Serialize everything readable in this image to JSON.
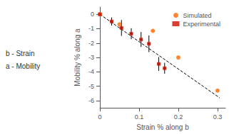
{
  "chart_data": {
    "type": "scatter",
    "xlabel": "Strain % along b",
    "ylabel": "Mobility % along a",
    "xlim": [
      0,
      0.32
    ],
    "ylim": [
      -6.5,
      0.5
    ],
    "xticks": [
      0,
      0.1,
      0.2,
      0.3
    ],
    "yticks": [
      0,
      -1,
      -2,
      -3,
      -4,
      -5,
      -6
    ],
    "grid": false,
    "legend": "upper right",
    "annotations": [
      "b - Strain",
      "a - Mobility"
    ],
    "series": [
      {
        "type": "line",
        "line_style": "dashed",
        "color": "black",
        "x": [
          0.0,
          0.305
        ],
        "values": [
          0.0,
          -5.8
        ]
      },
      {
        "type": "scatter",
        "name": "Simulated",
        "color": "#ff6600",
        "marker": "circle",
        "x": [
          0.0,
          0.05,
          0.135,
          0.2,
          0.3
        ],
        "values": [
          0.0,
          -0.7,
          -1.15,
          -3.0,
          -5.3
        ]
      },
      {
        "type": "scatter",
        "name": "Experimental",
        "color": "#cc1100",
        "marker": "square",
        "x": [
          0.0,
          0.03,
          0.055,
          0.08,
          0.105,
          0.125,
          0.15,
          0.165
        ],
        "values": [
          0.0,
          -0.5,
          -0.95,
          -1.35,
          -1.75,
          -2.05,
          -3.45,
          -3.75
        ],
        "yerr": [
          0.0,
          0.28,
          0.55,
          0.38,
          0.52,
          0.58,
          0.48,
          0.38
        ],
        "xerr": [
          0.004,
          0.004,
          0.004,
          0.004,
          0.004,
          0.004,
          0.004,
          0.004
        ]
      }
    ]
  }
}
